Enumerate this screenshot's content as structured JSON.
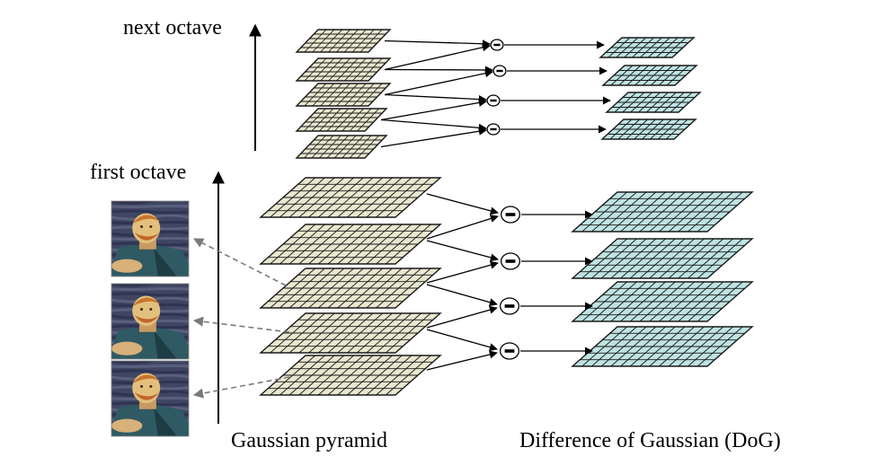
{
  "labels": {
    "next_octave": "next octave",
    "first_octave": "first octave",
    "gaussian_pyramid": "Gaussian pyramid",
    "dog": "Difference of Gaussian (DoG)"
  },
  "operator_symbol": "−",
  "structure": {
    "next_octave": {
      "gaussian_layers": 5,
      "dog_layers": 4
    },
    "first_octave": {
      "gaussian_layers": 5,
      "dog_layers": 4
    },
    "portrait_images": 3
  },
  "colors": {
    "gaussian_fill": "#e9e7cf",
    "dog_fill": "#bfe3e3",
    "grid": "#1a1a1a",
    "arrow": "#000000",
    "dashed_arrow": "#7a7a7a"
  }
}
